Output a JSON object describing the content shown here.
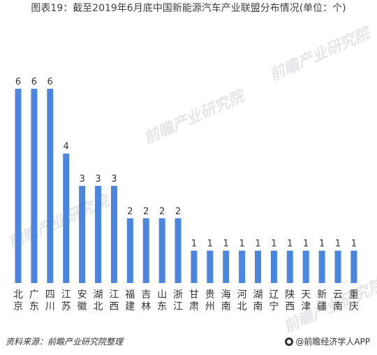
{
  "title": "图表19：截至2019年6月底中国新能源汽车产业联盟分布情况(单位：个)",
  "footer": {
    "source": "资料来源：前瞻产业研究院整理",
    "brand": "@前瞻经济学人APP"
  },
  "watermark": {
    "text": "前瞻产业研究院"
  },
  "colors": {
    "bar": "#4a86e0",
    "label": "#333333"
  },
  "chart_data": {
    "type": "bar",
    "categories": [
      "北京",
      "广东",
      "四川",
      "江苏",
      "安徽",
      "湖北",
      "江西",
      "福建",
      "吉林",
      "山东",
      "浙江",
      "甘肃",
      "贵州",
      "海南",
      "河北",
      "湖南",
      "辽宁",
      "陕西",
      "天津",
      "新疆",
      "云南",
      "重庆"
    ],
    "values": [
      6,
      6,
      6,
      4,
      3,
      3,
      3,
      2,
      2,
      2,
      2,
      1,
      1,
      1,
      1,
      1,
      1,
      1,
      1,
      1,
      1,
      1
    ],
    "ylim": [
      0,
      6.8
    ],
    "grid": false,
    "legend": "none",
    "data_labels": true
  }
}
